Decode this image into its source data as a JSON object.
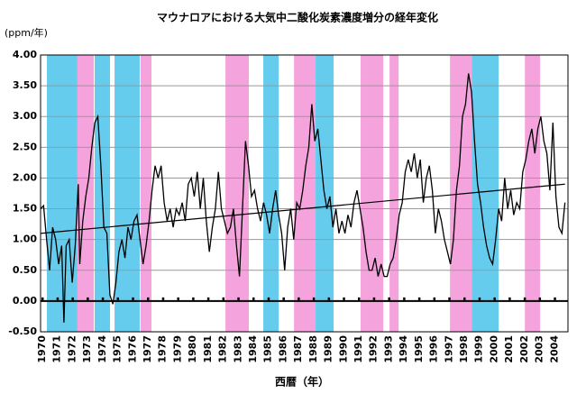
{
  "chart_data": {
    "type": "line",
    "title": "マウナロアにおける大気中二酸化炭素濃度増分の経年変化",
    "ylabel": "(ppm/年)",
    "xlabel": "西暦（年）",
    "color": "#000000",
    "xlim": [
      1970,
      2005
    ],
    "ylim": [
      -0.5,
      4
    ],
    "xticks": [
      1970,
      1971,
      1972,
      1973,
      1974,
      1975,
      1976,
      1977,
      1978,
      1979,
      1980,
      1981,
      1982,
      1983,
      1984,
      1985,
      1986,
      1987,
      1988,
      1989,
      1990,
      1991,
      1992,
      1993,
      1994,
      1995,
      1996,
      1997,
      1998,
      1999,
      2000,
      2001,
      2002,
      2003,
      2004
    ],
    "yticks": [
      {
        "value": -0.5,
        "label": "-0.50"
      },
      {
        "value": 0,
        "label": "0.00"
      },
      {
        "value": 0.5,
        "label": "0.50"
      },
      {
        "value": 1,
        "label": "1.00"
      },
      {
        "value": 1.5,
        "label": "1.50"
      },
      {
        "value": 2,
        "label": "2.00"
      },
      {
        "value": 2.5,
        "label": "2.50"
      },
      {
        "value": 3,
        "label": "3.00"
      },
      {
        "value": 3.5,
        "label": "3.50"
      },
      {
        "value": 4,
        "label": "4.00"
      }
    ],
    "grid": true,
    "bands": [
      {
        "start": 1970.42,
        "end": 1972.45,
        "color": "#66ccee"
      },
      {
        "start": 1972.45,
        "end": 1973.53,
        "color": "#f5a3dc"
      },
      {
        "start": 1973.59,
        "end": 1974.61,
        "color": "#66ccee"
      },
      {
        "start": 1974.91,
        "end": 1976.58,
        "color": "#66ccee"
      },
      {
        "start": 1976.64,
        "end": 1977.36,
        "color": "#f5a3dc"
      },
      {
        "start": 1982.27,
        "end": 1983.82,
        "color": "#f5a3dc"
      },
      {
        "start": 1984.78,
        "end": 1985.8,
        "color": "#66ccee"
      },
      {
        "start": 1986.82,
        "end": 1988.25,
        "color": "#f5a3dc"
      },
      {
        "start": 1988.25,
        "end": 1989.45,
        "color": "#66ccee"
      },
      {
        "start": 1991.24,
        "end": 1992.74,
        "color": "#f5a3dc"
      },
      {
        "start": 1993.16,
        "end": 1993.76,
        "color": "#f5a3dc"
      },
      {
        "start": 1997.17,
        "end": 1998.61,
        "color": "#f5a3dc"
      },
      {
        "start": 1998.61,
        "end": 2000.4,
        "color": "#66ccee"
      },
      {
        "start": 2002.14,
        "end": 2003.15,
        "color": "#f5a3dc"
      }
    ],
    "x": [
      1970.0,
      1970.2,
      1970.4,
      1970.6,
      1970.8,
      1971.0,
      1971.2,
      1971.4,
      1971.55,
      1971.7,
      1971.9,
      1972.1,
      1972.3,
      1972.5,
      1972.6,
      1972.8,
      1973.0,
      1973.2,
      1973.4,
      1973.6,
      1973.8,
      1974.0,
      1974.2,
      1974.4,
      1974.6,
      1974.8,
      1975.0,
      1975.2,
      1975.4,
      1975.6,
      1975.8,
      1976.0,
      1976.2,
      1976.4,
      1976.6,
      1976.8,
      1977.0,
      1977.2,
      1977.4,
      1977.6,
      1977.8,
      1978.0,
      1978.2,
      1978.4,
      1978.6,
      1978.8,
      1979.0,
      1979.2,
      1979.4,
      1979.6,
      1979.8,
      1980.0,
      1980.2,
      1980.4,
      1980.6,
      1980.8,
      1981.0,
      1981.2,
      1981.4,
      1981.6,
      1981.8,
      1982.0,
      1982.2,
      1982.4,
      1982.6,
      1982.8,
      1983.0,
      1983.2,
      1983.4,
      1983.6,
      1983.8,
      1984.0,
      1984.2,
      1984.4,
      1984.6,
      1984.8,
      1985.0,
      1985.2,
      1985.4,
      1985.6,
      1985.8,
      1986.0,
      1986.2,
      1986.4,
      1986.6,
      1986.8,
      1987.0,
      1987.2,
      1987.4,
      1987.6,
      1987.8,
      1988.0,
      1988.2,
      1988.4,
      1988.6,
      1988.8,
      1989.0,
      1989.2,
      1989.4,
      1989.6,
      1989.8,
      1990.0,
      1990.2,
      1990.4,
      1990.6,
      1990.8,
      1991.0,
      1991.2,
      1991.4,
      1991.6,
      1991.8,
      1992.0,
      1992.2,
      1992.4,
      1992.6,
      1992.8,
      1993.0,
      1993.2,
      1993.4,
      1993.6,
      1993.8,
      1994.0,
      1994.2,
      1994.4,
      1994.6,
      1994.8,
      1995.0,
      1995.2,
      1995.4,
      1995.6,
      1995.8,
      1996.0,
      1996.2,
      1996.4,
      1996.6,
      1996.8,
      1997.0,
      1997.2,
      1997.4,
      1997.6,
      1997.8,
      1998.0,
      1998.2,
      1998.4,
      1998.6,
      1998.8,
      1999.0,
      1999.2,
      1999.4,
      1999.6,
      1999.8,
      2000.0,
      2000.2,
      2000.4,
      2000.6,
      2000.8,
      2001.0,
      2001.2,
      2001.4,
      2001.6,
      2001.8,
      2002.0,
      2002.2,
      2002.4,
      2002.6,
      2002.8,
      2003.0,
      2003.2,
      2003.4,
      2003.6,
      2003.8,
      2004.0,
      2004.2,
      2004.4,
      2004.6,
      2004.8
    ],
    "values": [
      1.5,
      1.55,
      1.0,
      0.5,
      1.2,
      1.0,
      0.6,
      0.9,
      -0.35,
      0.9,
      1.0,
      0.3,
      0.9,
      1.9,
      0.6,
      1.3,
      1.7,
      2.0,
      2.5,
      2.9,
      3.0,
      2.2,
      1.2,
      1.1,
      0.1,
      -0.05,
      0.3,
      0.8,
      1.0,
      0.7,
      1.2,
      1.0,
      1.3,
      1.4,
      1.0,
      0.6,
      0.9,
      1.3,
      1.8,
      2.2,
      2.0,
      2.2,
      1.6,
      1.3,
      1.5,
      1.2,
      1.5,
      1.4,
      1.6,
      1.3,
      1.9,
      2.0,
      1.7,
      2.1,
      1.5,
      2.0,
      1.3,
      0.8,
      1.2,
      1.5,
      2.1,
      1.5,
      1.3,
      1.1,
      1.2,
      1.5,
      0.9,
      0.4,
      1.5,
      2.6,
      2.2,
      1.7,
      1.8,
      1.5,
      1.3,
      1.6,
      1.4,
      1.1,
      1.5,
      1.8,
      1.4,
      1.1,
      0.5,
      1.2,
      1.5,
      1.0,
      1.6,
      1.5,
      1.8,
      2.2,
      2.5,
      3.2,
      2.6,
      2.8,
      2.3,
      1.8,
      1.5,
      1.7,
      1.2,
      1.5,
      1.1,
      1.3,
      1.1,
      1.4,
      1.2,
      1.6,
      1.8,
      1.5,
      1.2,
      0.8,
      0.5,
      0.5,
      0.7,
      0.4,
      0.6,
      0.4,
      0.4,
      0.6,
      0.7,
      1.0,
      1.4,
      1.6,
      2.1,
      2.3,
      2.1,
      2.4,
      2.0,
      2.3,
      1.6,
      2.0,
      2.2,
      1.8,
      1.1,
      1.5,
      1.3,
      1.0,
      0.8,
      0.6,
      1.0,
      1.8,
      2.2,
      3.0,
      3.2,
      3.7,
      3.4,
      2.6,
      1.9,
      1.6,
      1.2,
      0.9,
      0.7,
      0.6,
      1.0,
      1.5,
      1.3,
      2.0,
      1.5,
      1.8,
      1.4,
      1.6,
      1.5,
      2.1,
      2.3,
      2.6,
      2.8,
      2.4,
      2.8,
      3.0,
      2.6,
      2.4,
      1.8,
      2.9,
      1.7,
      1.2,
      1.1,
      1.6
    ],
    "trend": {
      "x": [
        1970,
        2004.8
      ],
      "values": [
        1.1,
        1.9
      ]
    }
  }
}
